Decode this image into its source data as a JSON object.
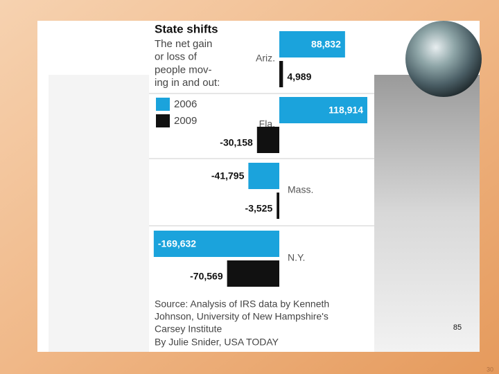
{
  "chart_data": {
    "type": "bar",
    "orientation": "horizontal",
    "title": "State shifts",
    "subtitle": [
      "The net gain",
      "or loss of",
      "people mov-",
      "ing in and out:"
    ],
    "categories": [
      "Ariz.",
      "Fla.",
      "Mass.",
      "N.Y."
    ],
    "series": [
      {
        "name": "2006",
        "color": "#1ba3dc",
        "values": [
          88832,
          118914,
          -41795,
          -169632
        ],
        "value_labels": [
          "88,832",
          "118,914",
          "-41,795",
          "-169,632"
        ]
      },
      {
        "name": "2009",
        "color": "#111111",
        "values": [
          4989,
          -30158,
          -3525,
          -70569
        ],
        "value_labels": [
          "4,989",
          "-30,158",
          "-3,525",
          "-70,569"
        ]
      }
    ],
    "source": [
      "Source: Analysis of IRS data by Kenneth",
      "Johnson, University of New Hampshire's",
      "Carsey Institute"
    ],
    "credit": "By Julie Snider, USA TODAY"
  },
  "slide": {
    "image_number": "85",
    "page_number": "30"
  }
}
